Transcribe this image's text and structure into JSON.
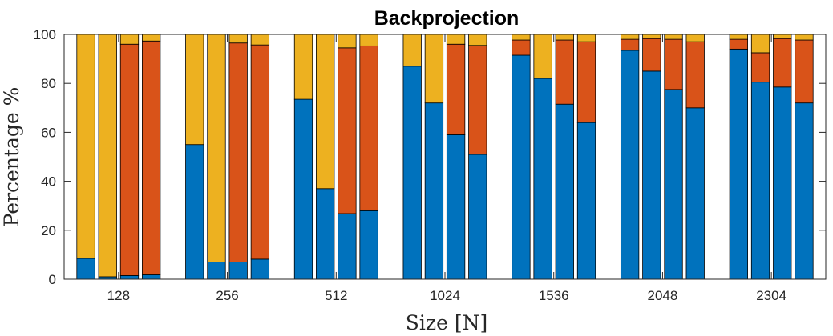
{
  "chart_data": {
    "type": "bar",
    "stacked": true,
    "title": "Backprojection",
    "xlabel": "Size [N]",
    "ylabel": "Percentage %",
    "ylim": [
      0,
      100
    ],
    "yticks": [
      0,
      20,
      40,
      60,
      80,
      100
    ],
    "categories": [
      "128",
      "256",
      "512",
      "1024",
      "1536",
      "2048",
      "2304"
    ],
    "bars_per_category": 4,
    "colors": {
      "blue": "#0072BD",
      "orange": "#D95319",
      "yellow": "#EDB120",
      "edge": "#000000",
      "axis": "#262626"
    },
    "series": [
      {
        "name": "blue",
        "color": "#0072BD",
        "values": [
          [
            8.5,
            1,
            1.5,
            1.8
          ],
          [
            55,
            7,
            7,
            8.2
          ],
          [
            73.5,
            37,
            26.8,
            28
          ],
          [
            87,
            72,
            59,
            51
          ],
          [
            91.5,
            82,
            71.5,
            64
          ],
          [
            93.5,
            85,
            77.5,
            70
          ],
          [
            94,
            80.5,
            78.5,
            72
          ]
        ]
      },
      {
        "name": "orange",
        "color": "#D95319",
        "values": [
          [
            0,
            0,
            94.5,
            95.5
          ],
          [
            0,
            0,
            89.5,
            87.5
          ],
          [
            0,
            0,
            67.7,
            67.3
          ],
          [
            0,
            0,
            37,
            44.5
          ],
          [
            6.2,
            0,
            26.2,
            33
          ],
          [
            4.5,
            13.3,
            20.5,
            27
          ],
          [
            4,
            12,
            19.8,
            25.7
          ]
        ]
      },
      {
        "name": "yellow",
        "color": "#EDB120",
        "values": [
          [
            91.5,
            99,
            4,
            2.7
          ],
          [
            45,
            93,
            3.5,
            4.3
          ],
          [
            26.5,
            63,
            5.5,
            4.7
          ],
          [
            13,
            28,
            4,
            4.5
          ],
          [
            2.3,
            18,
            2.3,
            3
          ],
          [
            2,
            1.7,
            2,
            3
          ],
          [
            2,
            7.5,
            1.7,
            2.3
          ]
        ]
      }
    ]
  }
}
